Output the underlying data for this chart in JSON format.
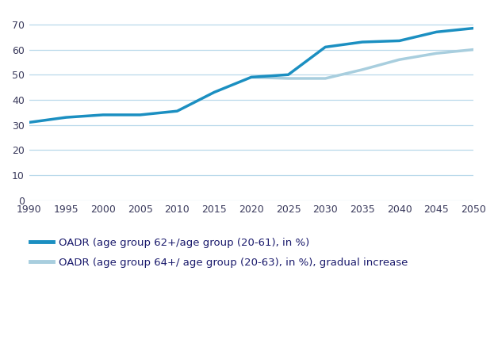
{
  "years": [
    1990,
    1995,
    2000,
    2005,
    2010,
    2015,
    2020,
    2025,
    2030,
    2035,
    2040,
    2045,
    2050
  ],
  "series1": [
    31,
    33,
    34,
    34,
    35.5,
    43,
    49,
    50,
    61,
    63,
    63.5,
    67,
    68.5
  ],
  "series2_years": [
    2020,
    2025,
    2030,
    2035,
    2040,
    2045,
    2050
  ],
  "series2": [
    49,
    48.5,
    48.5,
    52,
    56,
    58.5,
    60
  ],
  "series1_color": "#1b8fc1",
  "series2_color": "#a8cede",
  "series1_label": "OADR (age group 62+/age group (20-61), in %)",
  "series2_label": "OADR (age group 64+/ age group (20-63), in %), gradual increase",
  "ylim": [
    0,
    75
  ],
  "yticks": [
    0,
    10,
    20,
    30,
    40,
    50,
    60,
    70
  ],
  "xticks": [
    1990,
    1995,
    2000,
    2005,
    2010,
    2015,
    2020,
    2025,
    2030,
    2035,
    2040,
    2045,
    2050
  ],
  "background_color": "#ffffff",
  "grid_color": "#b8d8ea",
  "line_width": 2.5,
  "legend_fontsize": 9.5,
  "tick_fontsize": 9,
  "tick_color": "#3a3a5c",
  "label_color": "#1a1a6c"
}
